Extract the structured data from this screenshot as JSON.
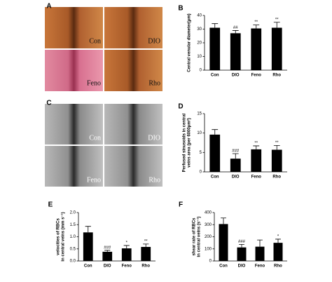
{
  "image_panels": [
    {
      "letter": "A",
      "labels": [
        "Con",
        "DIO",
        "Feno",
        "Rho"
      ]
    },
    {
      "letter": "C",
      "labels": [
        "Con",
        "DIO",
        "Feno",
        "Rho"
      ]
    }
  ],
  "chart_data": [
    {
      "type": "bar",
      "panel": "B",
      "ylabel": [
        "Central venular diameter(μm)"
      ],
      "categories": [
        "Con",
        "DIO",
        "Feno",
        "Rho"
      ],
      "values": [
        31,
        27,
        30.5,
        31
      ],
      "errors": [
        3,
        2,
        2.5,
        4
      ],
      "annotations": [
        null,
        "##",
        "**",
        "**"
      ],
      "color": "#000000",
      "ylim": [
        0,
        40
      ],
      "yticks": [
        0,
        10,
        20,
        30,
        40
      ]
    },
    {
      "type": "bar",
      "panel": "D",
      "ylabel": [
        "Perfused sinusoids in central",
        "veins area (per 6000μm²)"
      ],
      "categories": [
        "Con",
        "DIO",
        "Feno",
        "Rho"
      ],
      "values": [
        9.6,
        3.4,
        5.8,
        5.7
      ],
      "errors": [
        1.3,
        1.3,
        0.9,
        1.1
      ],
      "annotations": [
        null,
        "###",
        "**",
        "**"
      ],
      "color": "#000000",
      "ylim": [
        0,
        15
      ],
      "yticks": [
        0,
        5,
        10,
        15
      ]
    },
    {
      "type": "bar",
      "panel": "E",
      "ylabel": [
        "velocities of RBCs",
        "in central veins (mm s⁻¹)"
      ],
      "categories": [
        "Con",
        "DIO",
        "Feno",
        "Rho"
      ],
      "values": [
        1.18,
        0.38,
        0.52,
        0.58
      ],
      "errors": [
        0.25,
        0.06,
        0.12,
        0.12
      ],
      "annotations": [
        null,
        "###",
        "*",
        "**"
      ],
      "color": "#000000",
      "ylim": [
        0,
        2
      ],
      "yticks": [
        {
          "value": 0,
          "label": "0.0"
        },
        0.5,
        {
          "value": 1,
          "label": "1.0"
        },
        1.5,
        {
          "value": 2,
          "label": "2.0"
        }
      ]
    },
    {
      "type": "bar",
      "panel": "F",
      "ylabel": [
        "shear rate of RBCs",
        "in central veins (s⁻¹)"
      ],
      "categories": [
        "Con",
        "DIO",
        "Feno",
        "Rho"
      ],
      "values": [
        305,
        112,
        118,
        150
      ],
      "errors": [
        50,
        25,
        55,
        30
      ],
      "annotations": [
        null,
        "###",
        null,
        "*"
      ],
      "color": "#000000",
      "ylim": [
        0,
        400
      ],
      "yticks": [
        0,
        100,
        200,
        300,
        400
      ]
    }
  ]
}
